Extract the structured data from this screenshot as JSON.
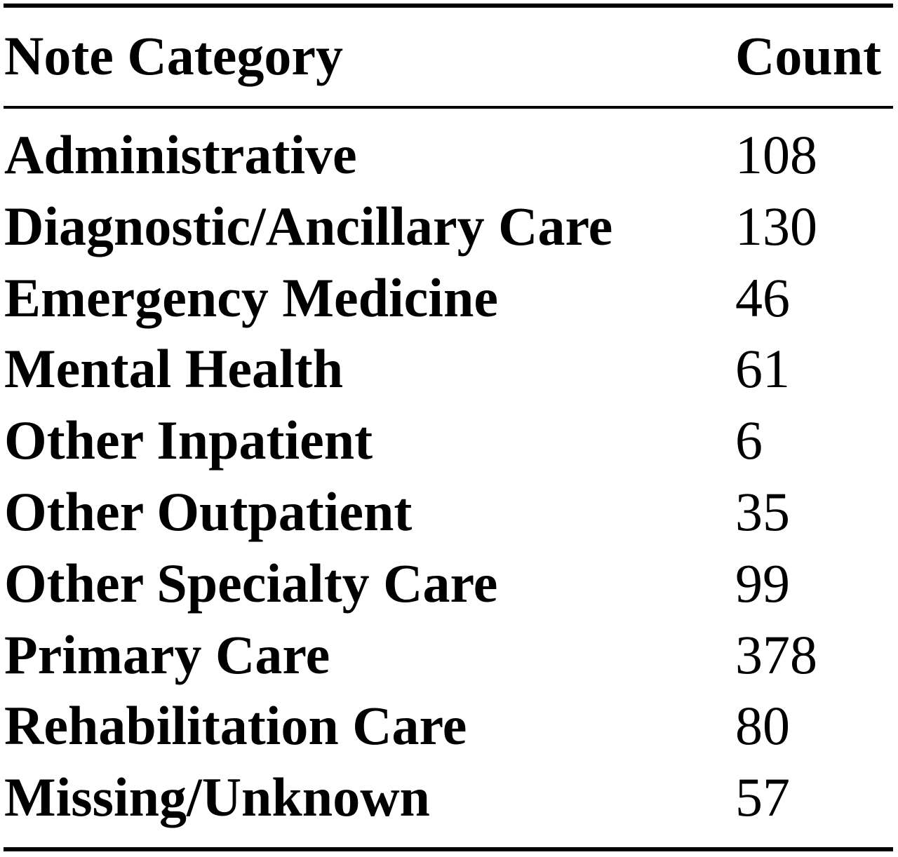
{
  "table": {
    "header": {
      "category": "Note Category",
      "count": "Count"
    },
    "rows": [
      {
        "category": "Administrative",
        "count": "108"
      },
      {
        "category": "Diagnostic/Ancillary Care",
        "count": "130"
      },
      {
        "category": "Emergency Medicine",
        "count": "46"
      },
      {
        "category": "Mental Health",
        "count": "61"
      },
      {
        "category": "Other Inpatient",
        "count": "6"
      },
      {
        "category": "Other Outpatient",
        "count": "35"
      },
      {
        "category": "Other Specialty Care",
        "count": "99"
      },
      {
        "category": "Primary Care",
        "count": "378"
      },
      {
        "category": "Rehabilitation Care",
        "count": "80"
      },
      {
        "category": "Missing/Unknown",
        "count": "57"
      }
    ]
  }
}
